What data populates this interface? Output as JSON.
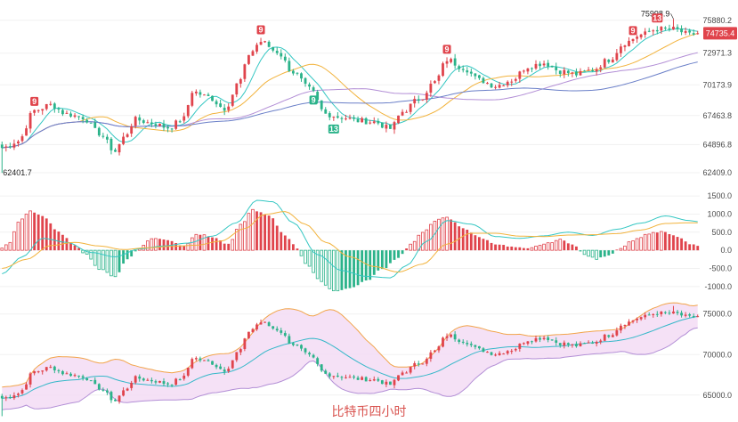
{
  "caption": "比特币四小时",
  "colors": {
    "up": "#e0444c",
    "down": "#2bb38a",
    "macd_up_hollow": "#e0444c",
    "ma_short": "#35c7c3",
    "ma_mid": "#f2b33d",
    "ma_long": "#b38fd6",
    "ma_longest": "#6a7fc8",
    "boll_mid": "#35b8c9",
    "boll_band": "#f2a44a",
    "boll_fill": "#f3dcf5",
    "price_tag": "#e0444c"
  },
  "chart_data": [
    {
      "type": "candlestick",
      "name": "price",
      "ylim": [
        62409,
        77200
      ],
      "y_ticks": [
        "75880.2",
        "72971.3",
        "70173.9",
        "67463.8",
        "64896.8",
        "62409.0"
      ],
      "y_tick_values": [
        75880.2,
        72971.3,
        70173.9,
        67463.8,
        64896.8,
        62409.0
      ],
      "last_price_label": "74735.4",
      "last_price": 74735.4,
      "annotations": [
        {
          "text": "75998.9",
          "index": 166,
          "value": 75998.9
        },
        {
          "text": "62401.7",
          "index": 0,
          "value": 62401.7
        }
      ],
      "markers": [
        {
          "text": "9",
          "index": 8,
          "kind": "sell"
        },
        {
          "text": "9",
          "index": 64,
          "kind": "sell"
        },
        {
          "text": "9",
          "index": 110,
          "kind": "sell"
        },
        {
          "text": "9",
          "index": 156,
          "kind": "sell"
        },
        {
          "text": "13",
          "index": 162,
          "kind": "sell"
        },
        {
          "text": "9",
          "index": 77,
          "kind": "buy"
        },
        {
          "text": "13",
          "index": 82,
          "kind": "buy"
        }
      ],
      "anchors": [
        [
          0,
          64600
        ],
        [
          4,
          65200
        ],
        [
          8,
          67900
        ],
        [
          12,
          68400
        ],
        [
          16,
          67600
        ],
        [
          20,
          67300
        ],
        [
          24,
          65900
        ],
        [
          28,
          64300
        ],
        [
          30,
          65500
        ],
        [
          33,
          67100
        ],
        [
          37,
          66800
        ],
        [
          41,
          66400
        ],
        [
          45,
          67200
        ],
        [
          47,
          69600
        ],
        [
          51,
          69100
        ],
        [
          55,
          68100
        ],
        [
          59,
          70600
        ],
        [
          61,
          72900
        ],
        [
          64,
          74000
        ],
        [
          68,
          73100
        ],
        [
          72,
          71300
        ],
        [
          76,
          69800
        ],
        [
          80,
          67600
        ],
        [
          84,
          67300
        ],
        [
          88,
          67000
        ],
        [
          92,
          66900
        ],
        [
          96,
          66300
        ],
        [
          99,
          67800
        ],
        [
          103,
          68900
        ],
        [
          107,
          70400
        ],
        [
          110,
          72400
        ],
        [
          114,
          71700
        ],
        [
          118,
          70600
        ],
        [
          122,
          70100
        ],
        [
          126,
          70600
        ],
        [
          130,
          71800
        ],
        [
          134,
          72100
        ],
        [
          138,
          71400
        ],
        [
          142,
          71100
        ],
        [
          146,
          71500
        ],
        [
          150,
          72400
        ],
        [
          154,
          73900
        ],
        [
          158,
          74600
        ],
        [
          162,
          75100
        ],
        [
          166,
          75100
        ],
        [
          170,
          74600
        ],
        [
          172,
          74735
        ]
      ]
    },
    {
      "type": "histogram",
      "name": "macd",
      "ylim": [
        -1250,
        1650
      ],
      "y_ticks": [
        "1500.0",
        "1000.0",
        "500.0",
        "0.0",
        "-500.0",
        "-1000.0"
      ],
      "y_tick_values": [
        1500,
        1000,
        500,
        0,
        -500,
        -1000
      ],
      "hist_anchors": [
        [
          0,
          50
        ],
        [
          2,
          220
        ],
        [
          4,
          780
        ],
        [
          7,
          1090
        ],
        [
          10,
          950
        ],
        [
          14,
          500
        ],
        [
          18,
          150
        ],
        [
          21,
          -120
        ],
        [
          24,
          -520
        ],
        [
          28,
          -720
        ],
        [
          31,
          -250
        ],
        [
          34,
          60
        ],
        [
          37,
          330
        ],
        [
          41,
          290
        ],
        [
          45,
          120
        ],
        [
          48,
          450
        ],
        [
          52,
          370
        ],
        [
          56,
          160
        ],
        [
          59,
          700
        ],
        [
          62,
          1120
        ],
        [
          66,
          950
        ],
        [
          70,
          420
        ],
        [
          73,
          60
        ],
        [
          75,
          -350
        ],
        [
          79,
          -880
        ],
        [
          82,
          -1120
        ],
        [
          86,
          -1050
        ],
        [
          90,
          -850
        ],
        [
          94,
          -520
        ],
        [
          98,
          -200
        ],
        [
          101,
          160
        ],
        [
          104,
          480
        ],
        [
          107,
          820
        ],
        [
          110,
          900
        ],
        [
          114,
          620
        ],
        [
          118,
          360
        ],
        [
          122,
          180
        ],
        [
          126,
          90
        ],
        [
          130,
          40
        ],
        [
          134,
          170
        ],
        [
          138,
          290
        ],
        [
          141,
          180
        ],
        [
          144,
          -120
        ],
        [
          147,
          -240
        ],
        [
          150,
          -130
        ],
        [
          153,
          70
        ],
        [
          156,
          280
        ],
        [
          160,
          460
        ],
        [
          163,
          510
        ],
        [
          167,
          380
        ],
        [
          170,
          170
        ],
        [
          172,
          120
        ]
      ],
      "dif_anchors": [
        [
          0,
          -650
        ],
        [
          5,
          -180
        ],
        [
          10,
          330
        ],
        [
          16,
          220
        ],
        [
          22,
          -60
        ],
        [
          28,
          -180
        ],
        [
          34,
          40
        ],
        [
          40,
          120
        ],
        [
          46,
          200
        ],
        [
          52,
          390
        ],
        [
          58,
          760
        ],
        [
          63,
          1380
        ],
        [
          67,
          1340
        ],
        [
          72,
          760
        ],
        [
          78,
          -120
        ],
        [
          84,
          -560
        ],
        [
          90,
          -720
        ],
        [
          96,
          -760
        ],
        [
          100,
          -420
        ],
        [
          105,
          250
        ],
        [
          110,
          820
        ],
        [
          116,
          720
        ],
        [
          122,
          380
        ],
        [
          128,
          330
        ],
        [
          134,
          400
        ],
        [
          140,
          500
        ],
        [
          146,
          410
        ],
        [
          152,
          580
        ],
        [
          158,
          750
        ],
        [
          164,
          950
        ],
        [
          170,
          820
        ],
        [
          172,
          790
        ]
      ],
      "dea_anchors": [
        [
          0,
          -500
        ],
        [
          6,
          -250
        ],
        [
          12,
          130
        ],
        [
          18,
          220
        ],
        [
          24,
          120
        ],
        [
          30,
          20
        ],
        [
          36,
          70
        ],
        [
          42,
          110
        ],
        [
          48,
          140
        ],
        [
          54,
          250
        ],
        [
          60,
          600
        ],
        [
          65,
          990
        ],
        [
          70,
          1070
        ],
        [
          75,
          720
        ],
        [
          80,
          220
        ],
        [
          86,
          -180
        ],
        [
          92,
          -450
        ],
        [
          98,
          -600
        ],
        [
          104,
          -380
        ],
        [
          110,
          170
        ],
        [
          116,
          470
        ],
        [
          122,
          470
        ],
        [
          128,
          390
        ],
        [
          134,
          380
        ],
        [
          140,
          420
        ],
        [
          146,
          430
        ],
        [
          152,
          460
        ],
        [
          158,
          560
        ],
        [
          164,
          740
        ],
        [
          170,
          760
        ],
        [
          172,
          760
        ]
      ]
    },
    {
      "type": "candlestick",
      "name": "bollinger",
      "ylim": [
        64100,
        76400
      ],
      "y_ticks": [
        "75000.0",
        "70000.0",
        "65000.0"
      ],
      "y_tick_values": [
        75000,
        70000,
        65000
      ]
    }
  ]
}
